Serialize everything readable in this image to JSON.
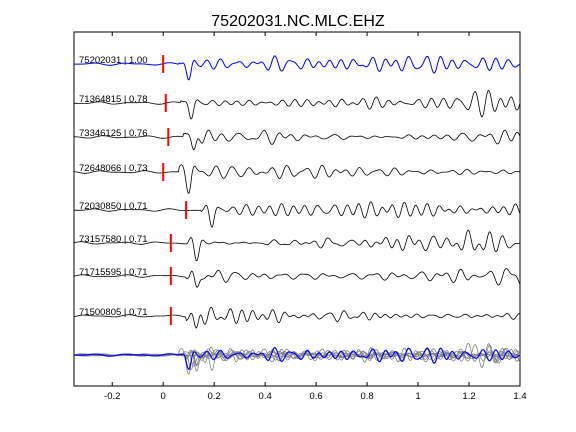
{
  "chart_data": {
    "type": "line",
    "title": "75202031.NC.MLC.EHZ",
    "xlabel": "",
    "ylabel": "",
    "xlim": [
      -0.35,
      1.4
    ],
    "xticks": [
      -0.2,
      0,
      0.2,
      0.4,
      0.6,
      0.8,
      1,
      1.2,
      1.4
    ],
    "xtick_labels": [
      "-0.2",
      "0",
      "0.2",
      "0.4",
      "0.6",
      "0.8",
      "1",
      "1.2",
      "1.4"
    ],
    "grid": false,
    "legend": "none",
    "colors": {
      "reference": "#0000ff",
      "trace": "#000000",
      "pick": "#ff0000",
      "stack": "#808080"
    },
    "series": [
      {
        "label": "75202031 | 1.00",
        "pick": 0.0,
        "reference": true
      },
      {
        "label": "71364815 | 0.78",
        "pick": 0.01
      },
      {
        "label": "73346125 | 0.76",
        "pick": 0.02
      },
      {
        "label": "72648066 | 0.73",
        "pick": 0.0
      },
      {
        "label": "72030850 | 0.71",
        "pick": 0.09
      },
      {
        "label": "73157580 | 0.71",
        "pick": 0.03
      },
      {
        "label": "71715595 | 0.71",
        "pick": 0.03
      },
      {
        "label": "71500805 | 0.71",
        "pick": 0.03
      }
    ]
  }
}
